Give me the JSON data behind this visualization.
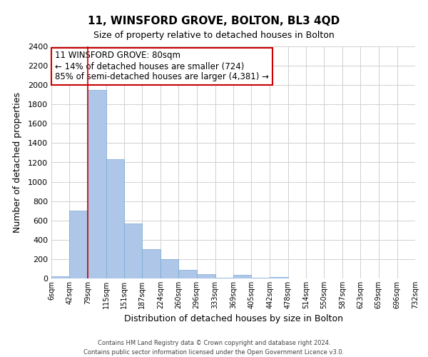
{
  "title": "11, WINSFORD GROVE, BOLTON, BL3 4QD",
  "subtitle": "Size of property relative to detached houses in Bolton",
  "xlabel": "Distribution of detached houses by size in Bolton",
  "ylabel": "Number of detached properties",
  "bin_edges": [
    6,
    42,
    79,
    115,
    151,
    187,
    224,
    260,
    296,
    333,
    369,
    405,
    442,
    478,
    514,
    550,
    587,
    623,
    659,
    696,
    732
  ],
  "bin_heights": [
    20,
    700,
    1950,
    1230,
    570,
    300,
    200,
    85,
    45,
    10,
    35,
    5,
    15,
    2,
    2,
    1,
    1,
    0,
    0,
    0
  ],
  "bar_color": "#aec6e8",
  "bar_edge_color": "#7aa8d4",
  "property_line_x": 79,
  "property_line_color": "#cc0000",
  "annotation_line1": "11 WINSFORD GROVE: 80sqm",
  "annotation_line2": "← 14% of detached houses are smaller (724)",
  "annotation_line3": "85% of semi-detached houses are larger (4,381) →",
  "annotation_box_edge_color": "#cc0000",
  "annotation_box_facecolor": "#ffffff",
  "ylim": [
    0,
    2400
  ],
  "yticks": [
    0,
    200,
    400,
    600,
    800,
    1000,
    1200,
    1400,
    1600,
    1800,
    2000,
    2200,
    2400
  ],
  "tick_labels": [
    "6sqm",
    "42sqm",
    "79sqm",
    "115sqm",
    "151sqm",
    "187sqm",
    "224sqm",
    "260sqm",
    "296sqm",
    "333sqm",
    "369sqm",
    "405sqm",
    "442sqm",
    "478sqm",
    "514sqm",
    "550sqm",
    "587sqm",
    "623sqm",
    "659sqm",
    "696sqm",
    "732sqm"
  ],
  "footer_line1": "Contains HM Land Registry data © Crown copyright and database right 2024.",
  "footer_line2": "Contains public sector information licensed under the Open Government Licence v3.0.",
  "grid_color": "#d0d0d0",
  "background_color": "#ffffff",
  "title_fontsize": 11,
  "subtitle_fontsize": 9,
  "annotation_fontsize": 8.5
}
